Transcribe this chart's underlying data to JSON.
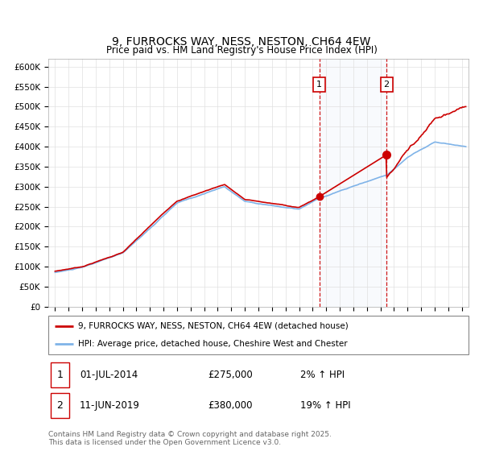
{
  "title": "9, FURROCKS WAY, NESS, NESTON, CH64 4EW",
  "subtitle": "Price paid vs. HM Land Registry's House Price Index (HPI)",
  "ylabel_ticks": [
    "£0",
    "£50K",
    "£100K",
    "£150K",
    "£200K",
    "£250K",
    "£300K",
    "£350K",
    "£400K",
    "£450K",
    "£500K",
    "£550K",
    "£600K"
  ],
  "ytick_values": [
    0,
    50000,
    100000,
    150000,
    200000,
    250000,
    300000,
    350000,
    400000,
    450000,
    500000,
    550000,
    600000
  ],
  "hpi_color": "#7fb3e8",
  "price_color": "#cc0000",
  "marker1_date_x": 2014.5,
  "marker1_price": 275000,
  "marker1_label": "1",
  "marker1_text": "01-JUL-2014",
  "marker1_value": "£275,000",
  "marker1_hpi": "2% ↑ HPI",
  "marker2_date_x": 2019.45,
  "marker2_price": 380000,
  "marker2_label": "2",
  "marker2_text": "11-JUN-2019",
  "marker2_value": "£380,000",
  "marker2_hpi": "19% ↑ HPI",
  "legend_line1": "9, FURROCKS WAY, NESS, NESTON, CH64 4EW (detached house)",
  "legend_line2": "HPI: Average price, detached house, Cheshire West and Chester",
  "footer": "Contains HM Land Registry data © Crown copyright and database right 2025.\nThis data is licensed under the Open Government Licence v3.0.",
  "xlim": [
    1994.5,
    2025.5
  ],
  "ylim": [
    0,
    620000
  ],
  "shade_alpha": 0.12,
  "shade_color": "#c8d8f0"
}
